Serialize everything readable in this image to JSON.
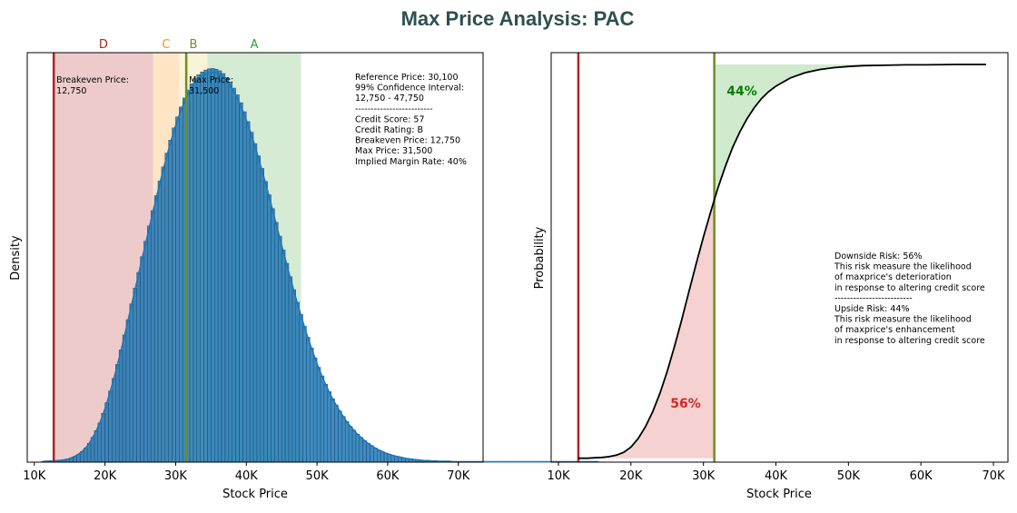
{
  "title": "Max Price Analysis: PAC",
  "colors": {
    "title": "#2f4f4f",
    "zone_d": "#d98c8c",
    "zone_c": "#ffc680",
    "zone_b": "#f2e6a6",
    "zone_a": "#a3d3a0",
    "breakeven_line": "#b22222",
    "max_price_line": "#6b8e23",
    "bars": "#1f77b4",
    "kde": "#1f77b4",
    "cdf": "#000000",
    "downside_fill": "#f2c2c2",
    "upside_fill": "#c8e6c4",
    "downside_text": "#d62728",
    "upside_text": "#008000"
  },
  "chart_data": [
    {
      "type": "bar",
      "name": "histogram",
      "xlabel": "Stock Price",
      "ylabel": "Density",
      "xlim": [
        9000,
        73500
      ],
      "ylim": [
        0,
        1.04
      ],
      "x_ticks": [
        10000,
        20000,
        30000,
        40000,
        50000,
        60000,
        70000
      ],
      "x_tick_labels": [
        "10K",
        "20K",
        "30K",
        "40K",
        "50K",
        "60K",
        "70K"
      ],
      "y_ticks_visible": false,
      "zones": [
        {
          "label": "D",
          "from": 12750,
          "to": 26800,
          "color": "#d98c8c",
          "label_color": "#b22222"
        },
        {
          "label": "C",
          "from": 26800,
          "to": 30500,
          "color": "#ffc680",
          "label_color": "#ff8c00"
        },
        {
          "label": "B",
          "from": 30500,
          "to": 34500,
          "color": "#f2e6a6",
          "label_color": "#6b8e23"
        },
        {
          "label": "A",
          "from": 34500,
          "to": 47750,
          "color": "#a3d3a0",
          "label_color": "#2ca02c"
        }
      ],
      "vertical_lines": [
        {
          "name": "breakeven",
          "x": 12750,
          "label": "Breakeven Price:",
          "value_label": "12,750"
        },
        {
          "name": "max-price",
          "x": 31500,
          "label": "Max Price:",
          "value_label": "31,500"
        }
      ],
      "bin_width": 500,
      "bin_start": 11000,
      "values": [
        0.002,
        0.002,
        0.003,
        0.003,
        0.004,
        0.005,
        0.006,
        0.008,
        0.011,
        0.015,
        0.02,
        0.027,
        0.036,
        0.048,
        0.063,
        0.08,
        0.1,
        0.124,
        0.151,
        0.181,
        0.213,
        0.248,
        0.285,
        0.323,
        0.362,
        0.402,
        0.442,
        0.482,
        0.522,
        0.561,
        0.6,
        0.639,
        0.677,
        0.714,
        0.75,
        0.785,
        0.818,
        0.849,
        0.877,
        0.902,
        0.925,
        0.945,
        0.961,
        0.974,
        0.984,
        0.991,
        0.996,
        0.999,
        1.0,
        0.998,
        0.994,
        0.987,
        0.977,
        0.965,
        0.95,
        0.933,
        0.913,
        0.89,
        0.865,
        0.838,
        0.809,
        0.778,
        0.746,
        0.713,
        0.679,
        0.644,
        0.609,
        0.574,
        0.539,
        0.505,
        0.471,
        0.438,
        0.406,
        0.375,
        0.345,
        0.317,
        0.29,
        0.265,
        0.241,
        0.219,
        0.198,
        0.179,
        0.161,
        0.145,
        0.13,
        0.116,
        0.103,
        0.091,
        0.081,
        0.071,
        0.063,
        0.055,
        0.048,
        0.042,
        0.036,
        0.031,
        0.027,
        0.023,
        0.02,
        0.017,
        0.015,
        0.013,
        0.011,
        0.009,
        0.008,
        0.007,
        0.006,
        0.005,
        0.004,
        0.004,
        0.003,
        0.003,
        0.002,
        0.002,
        0.002,
        0.002,
        0.001,
        0.001,
        0.001,
        0.001,
        0.001,
        0.001,
        0.001,
        0.001,
        0.001,
        0.001,
        0.001,
        0.001,
        0.001,
        0.001,
        0.001,
        0.001,
        0.001,
        0.001,
        0.001,
        0.001,
        0.001,
        0.001,
        0.001,
        0.001,
        0.001,
        0.001,
        0.001,
        0.001,
        0.001,
        0.001,
        0.001,
        0.001,
        0.001,
        0.001,
        0.001,
        0.001,
        0.001,
        0.001,
        0.001,
        0.001,
        0.001,
        0.001
      ],
      "annotations": [
        "Reference Price: 30,100",
        "99% Confidence Interval:",
        "12,750 - 47,750",
        "-------------------------",
        "Credit Score: 57",
        "Credit Rating: B",
        "Breakeven Price: 12,750",
        "Max Price: 31,500",
        "Implied Margin Rate: 40%"
      ]
    },
    {
      "type": "line",
      "name": "cdf",
      "xlabel": "Stock Price",
      "ylabel": "Probability",
      "xlim": [
        9000,
        72000
      ],
      "ylim": [
        -0.01,
        1.03
      ],
      "x_ticks": [
        10000,
        20000,
        30000,
        40000,
        50000,
        60000,
        70000
      ],
      "x_tick_labels": [
        "10K",
        "20K",
        "30K",
        "40K",
        "50K",
        "60K",
        "70K"
      ],
      "y_ticks_visible": false,
      "x": [
        12750,
        14000,
        15000,
        16000,
        17000,
        18000,
        19000,
        20000,
        21000,
        22000,
        23000,
        24000,
        25000,
        26000,
        27000,
        28000,
        29000,
        30000,
        31000,
        31500,
        32000,
        33000,
        34000,
        35000,
        36000,
        37000,
        38000,
        39000,
        40000,
        42000,
        44000,
        46000,
        48000,
        50000,
        52000,
        55000,
        58000,
        61000,
        65000,
        69000
      ],
      "y": [
        0.0,
        0.0,
        0.001,
        0.002,
        0.004,
        0.008,
        0.015,
        0.028,
        0.05,
        0.08,
        0.118,
        0.165,
        0.22,
        0.283,
        0.351,
        0.423,
        0.494,
        0.562,
        0.626,
        0.656,
        0.686,
        0.74,
        0.788,
        0.828,
        0.862,
        0.89,
        0.913,
        0.931,
        0.945,
        0.966,
        0.979,
        0.987,
        0.992,
        0.995,
        0.997,
        0.998,
        0.999,
        0.999,
        1.0,
        1.0
      ],
      "vertical_lines": [
        {
          "name": "breakeven",
          "x": 12750
        },
        {
          "name": "max-price",
          "x": 31500
        }
      ],
      "downside_label": "56%",
      "upside_label": "44%",
      "annotations": [
        "Downside Risk: 56%",
        "This risk measure the likelihood",
        "of maxprice's deterioration",
        "in response to altering credit score",
        "-------------------------",
        "Upside Risk: 44%",
        "This risk measure the likelihood",
        "of maxprice's enhancement",
        "in response to altering credit score"
      ]
    }
  ]
}
